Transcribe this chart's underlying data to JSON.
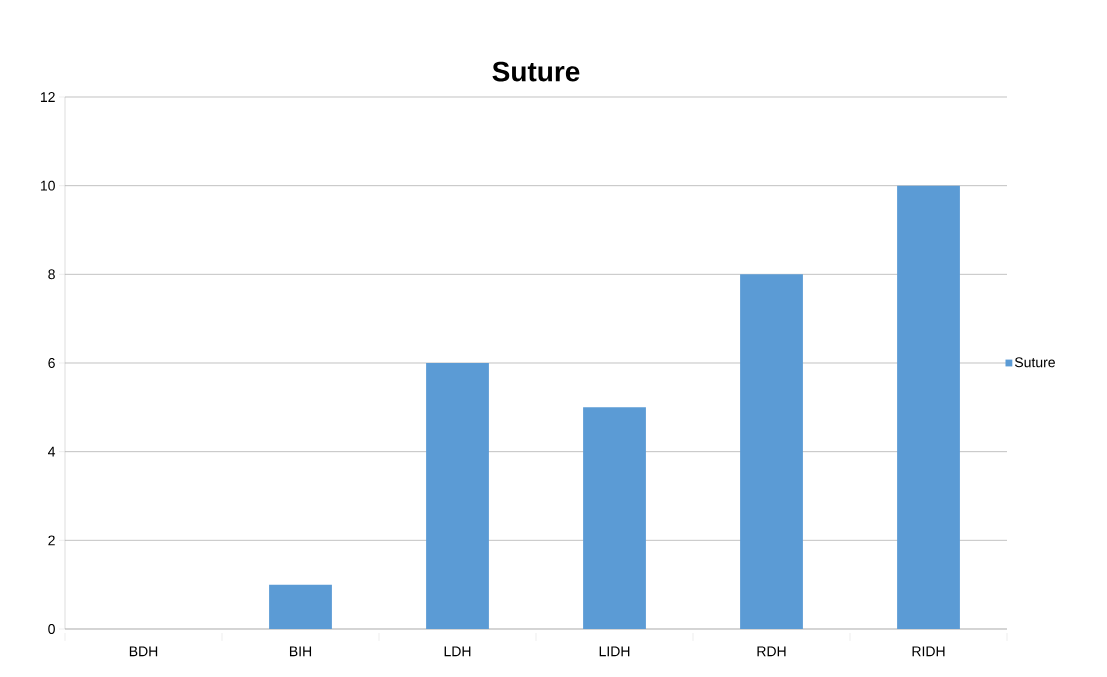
{
  "chart_data": {
    "type": "bar",
    "title": "Suture",
    "categories": [
      "BDH",
      "BIH",
      "LDH",
      "LIDH",
      "RDH",
      "RIDH"
    ],
    "series": [
      {
        "name": "Suture",
        "color": "#5b9bd5",
        "values": [
          0,
          1,
          6,
          5,
          8,
          10
        ]
      }
    ],
    "ylim": [
      0,
      12
    ],
    "yticks": [
      0,
      2,
      4,
      6,
      8,
      10,
      12
    ],
    "grid": "y",
    "legend": "right"
  }
}
